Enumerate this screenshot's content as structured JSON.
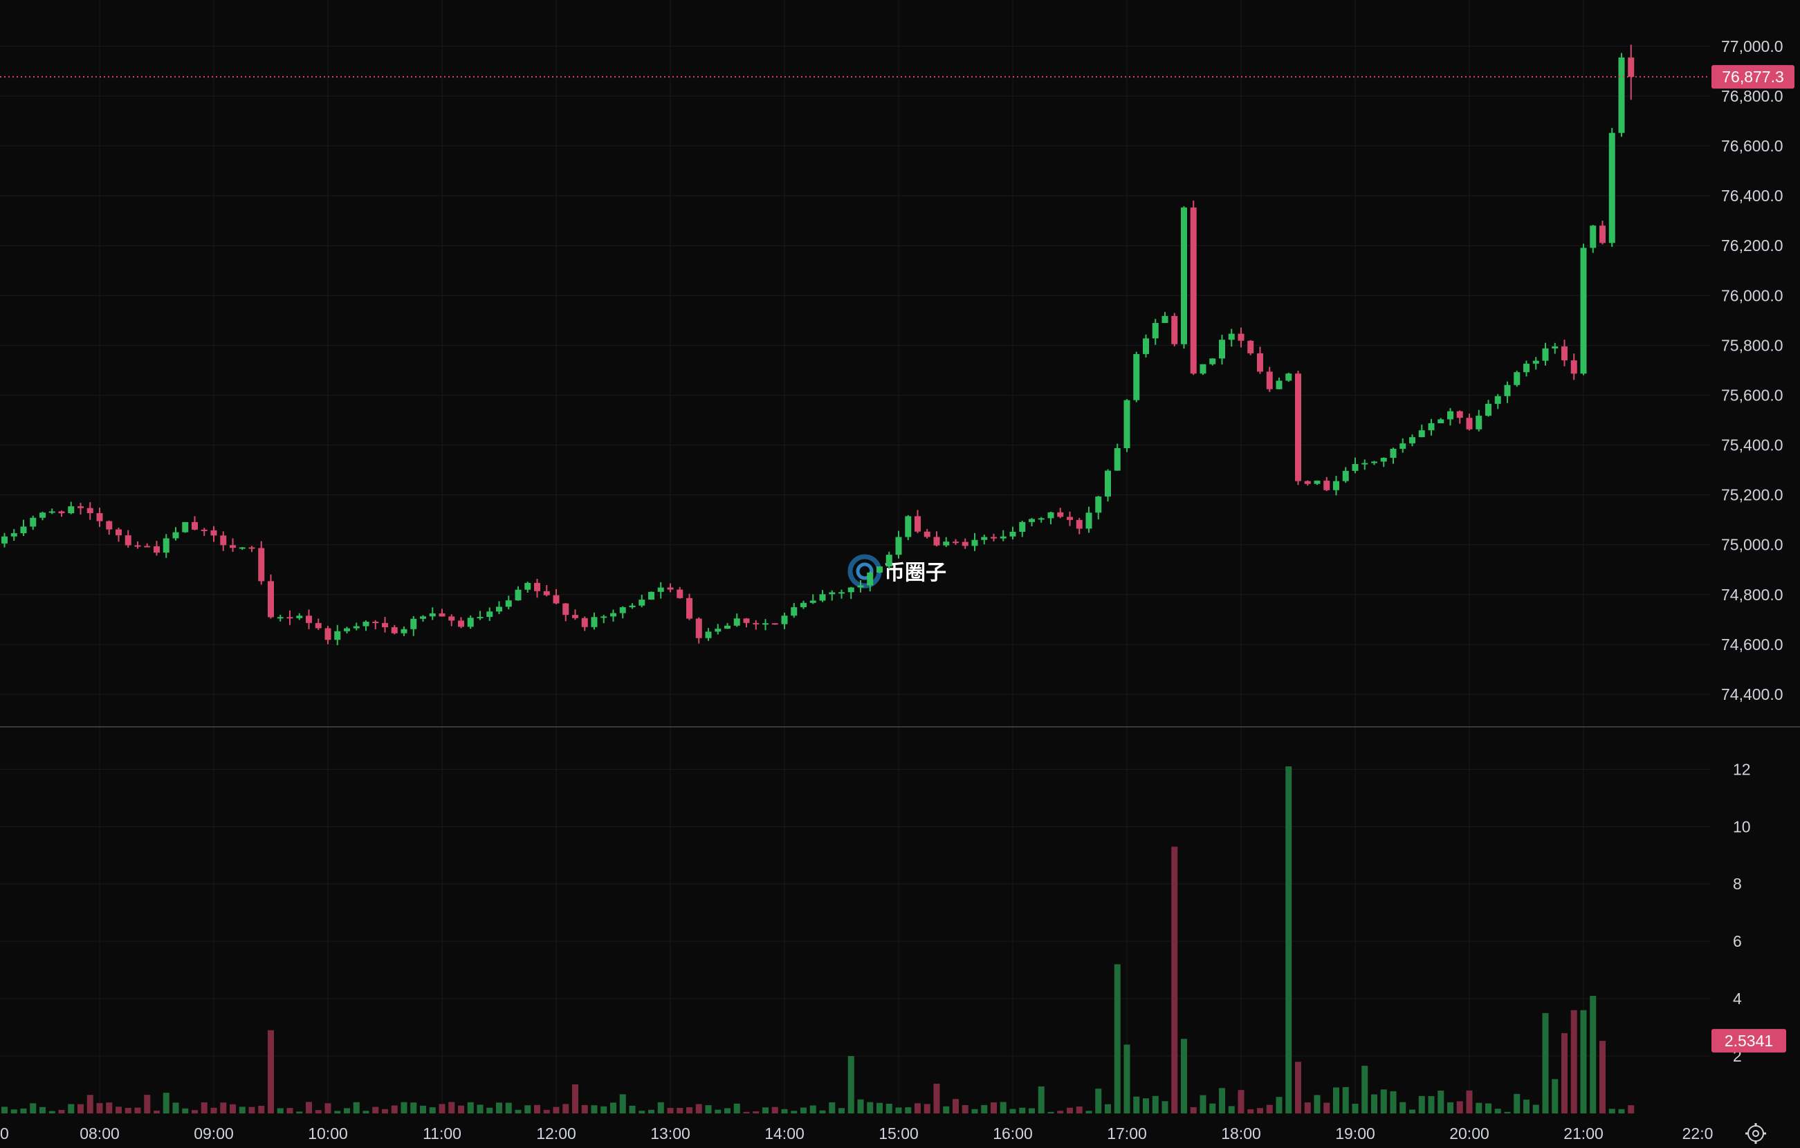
{
  "colors": {
    "background": "#0a0a0a",
    "grid": "#1b1b1b",
    "axis_text": "#d1d4dc",
    "up": "#2fbd5e",
    "down": "#d9486f",
    "volume_up": "#1f6e39",
    "volume_down": "#7c2a3f",
    "price_line": "#d9486f",
    "divider": "#3a3a3a"
  },
  "watermark": {
    "text": "币圈子",
    "icon": "bitquanzi-logo-icon"
  },
  "settings_icon": "gear-icon",
  "last_price_label": "76,877.3",
  "last_volume_label": "2.5341",
  "chart_data": [
    {
      "type": "candlestick",
      "interval_minutes": 5,
      "x_tick_labels": [
        "0",
        "08:00",
        "09:00",
        "10:00",
        "11:00",
        "12:00",
        "13:00",
        "14:00",
        "15:00",
        "16:00",
        "17:00",
        "18:00",
        "19:00",
        "20:00",
        "21:00",
        "22:0"
      ],
      "y_tick_labels": [
        "74,400.0",
        "74,600.0",
        "74,800.0",
        "75,000.0",
        "75,200.0",
        "75,400.0",
        "75,600.0",
        "75,800.0",
        "76,000.0",
        "76,200.0",
        "76,400.0",
        "76,600.0",
        "76,800.0",
        "77,000.0"
      ],
      "ylim": [
        74300,
        77130
      ],
      "grid": true,
      "last_price": 76877.3,
      "waypoints": [
        [
          "07:10",
          75020
        ],
        [
          "07:25",
          75110
        ],
        [
          "07:45",
          75150
        ],
        [
          "08:00",
          75100
        ],
        [
          "08:15",
          75010
        ],
        [
          "08:30",
          74980
        ],
        [
          "08:45",
          75080
        ],
        [
          "09:05",
          75010
        ],
        [
          "09:20",
          74980
        ],
        [
          "09:30",
          74700
        ],
        [
          "09:45",
          74720
        ],
        [
          "10:00",
          74630
        ],
        [
          "10:20",
          74700
        ],
        [
          "10:35",
          74640
        ],
        [
          "10:50",
          74720
        ],
        [
          "11:10",
          74680
        ],
        [
          "11:30",
          74740
        ],
        [
          "11:45",
          74840
        ],
        [
          "12:00",
          74760
        ],
        [
          "12:15",
          74680
        ],
        [
          "12:35",
          74740
        ],
        [
          "12:55",
          74840
        ],
        [
          "13:05",
          74780
        ],
        [
          "13:15",
          74640
        ],
        [
          "13:35",
          74700
        ],
        [
          "13:55",
          74680
        ],
        [
          "14:05",
          74740
        ],
        [
          "14:20",
          74800
        ],
        [
          "14:40",
          74840
        ],
        [
          "14:55",
          74960
        ],
        [
          "15:05",
          75100
        ],
        [
          "15:20",
          75000
        ],
        [
          "15:40",
          75010
        ],
        [
          "16:00",
          75060
        ],
        [
          "16:20",
          75130
        ],
        [
          "16:35",
          75070
        ],
        [
          "16:45",
          75200
        ],
        [
          "16:55",
          75400
        ],
        [
          "17:05",
          75780
        ],
        [
          "17:20",
          75930
        ],
        [
          "17:25",
          75800
        ],
        [
          "17:30",
          76350
        ],
        [
          "17:35",
          75700
        ],
        [
          "17:45",
          75760
        ],
        [
          "17:55",
          75860
        ],
        [
          "18:05",
          75780
        ],
        [
          "18:15",
          75620
        ],
        [
          "18:25",
          75700
        ],
        [
          "18:30",
          75270
        ],
        [
          "18:45",
          75230
        ],
        [
          "18:55",
          75300
        ],
        [
          "19:15",
          75350
        ],
        [
          "19:35",
          75450
        ],
        [
          "19:50",
          75540
        ],
        [
          "20:00",
          75470
        ],
        [
          "20:15",
          75610
        ],
        [
          "20:35",
          75750
        ],
        [
          "20:45",
          75800
        ],
        [
          "20:55",
          75700
        ],
        [
          "21:00",
          76200
        ],
        [
          "21:05",
          76280
        ],
        [
          "21:10",
          76200
        ],
        [
          "21:15",
          76650
        ],
        [
          "21:20",
          76950
        ],
        [
          "21:25",
          76877
        ]
      ]
    },
    {
      "type": "bar",
      "name": "volume",
      "y_tick_labels": [
        "2",
        "4",
        "6",
        "8",
        "10",
        "12"
      ],
      "ylim": [
        0,
        12.9
      ],
      "last_value": 2.5341,
      "spikes": [
        [
          "09:30",
          2.9
        ],
        [
          "14:35",
          2.0
        ],
        [
          "16:55",
          5.2
        ],
        [
          "17:00",
          2.4
        ],
        [
          "17:25",
          9.3
        ],
        [
          "17:30",
          2.6
        ],
        [
          "18:25",
          12.1
        ],
        [
          "18:30",
          1.8
        ],
        [
          "20:40",
          3.5
        ],
        [
          "20:50",
          2.8
        ],
        [
          "20:55",
          3.6
        ],
        [
          "21:00",
          3.6
        ],
        [
          "21:05",
          4.1
        ],
        [
          "21:10",
          2.53
        ]
      ]
    }
  ]
}
